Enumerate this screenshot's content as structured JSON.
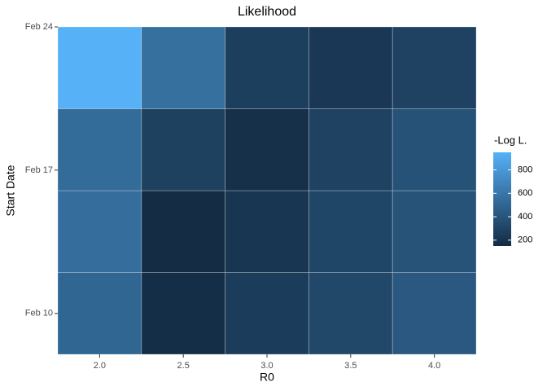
{
  "chart_data": {
    "type": "heatmap",
    "title": "Likelihood",
    "x_label": "R0",
    "y_label": "Start Date",
    "legend_title": "-Log L.",
    "x": [
      2,
      2.5,
      3,
      3.5,
      4
    ],
    "y": [
      10,
      14,
      18,
      22
    ],
    "values": [
      [
        500,
        170,
        250,
        320,
        420
      ],
      [
        550,
        160,
        210,
        310,
        390
      ],
      [
        530,
        280,
        180,
        290,
        380
      ],
      [
        950,
        560,
        270,
        230,
        290
      ]
    ],
    "xlim": [
      1.75,
      4.25
    ],
    "xticks": [
      {
        "value": 2,
        "label": "2.0"
      },
      {
        "value": 2.5,
        "label": "2.5"
      },
      {
        "value": 3,
        "label": "3.0"
      },
      {
        "value": 3.5,
        "label": "3.5"
      },
      {
        "value": 4,
        "label": "4.0"
      }
    ],
    "ylim": [
      8,
      24
    ],
    "yticks": [
      {
        "value": 10,
        "label": "Feb 10"
      },
      {
        "value": 17,
        "label": "Feb 17"
      },
      {
        "value": 24,
        "label": "Feb 24"
      }
    ],
    "colors": [
      "#132B43",
      "#56B1F7"
    ],
    "color_lim": [
      150,
      950
    ],
    "color_ticks": [
      200,
      400,
      600,
      800
    ]
  }
}
